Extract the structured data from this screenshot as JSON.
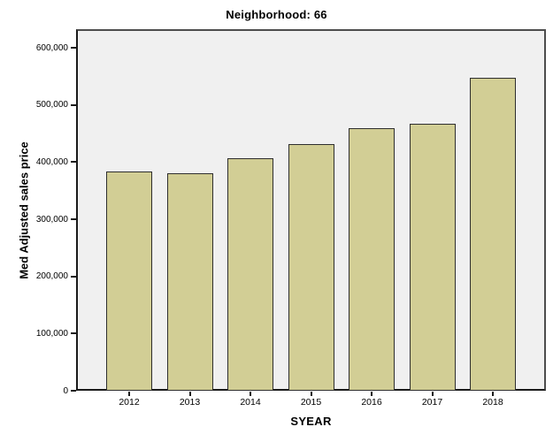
{
  "chart_data": {
    "type": "bar",
    "title": "Neighborhood: 66",
    "xlabel": "SYEAR",
    "ylabel": "Med Adjusted sales price",
    "categories": [
      "2012",
      "2013",
      "2014",
      "2015",
      "2016",
      "2017",
      "2018"
    ],
    "values": [
      384000,
      380000,
      407000,
      431000,
      460000,
      467000,
      548000
    ],
    "ylim": [
      0,
      632500
    ],
    "y_tick_values": [
      0,
      100000,
      200000,
      300000,
      400000,
      500000,
      600000
    ],
    "y_tick_labels": [
      "0",
      "100,000",
      "200,000",
      "300,000",
      "400,000",
      "500,000",
      "600,000"
    ],
    "grid": false,
    "legend": "none"
  },
  "colors": {
    "bar_fill": "#D2CE95",
    "bar_border": "#2E2E2E",
    "plot_background": "#F0F0F0",
    "frame": "#4D4D4D",
    "axis": "#1A1A1A",
    "tick": "#1A1A1A",
    "page_background": "#FFFFFF",
    "text": "#000000"
  }
}
